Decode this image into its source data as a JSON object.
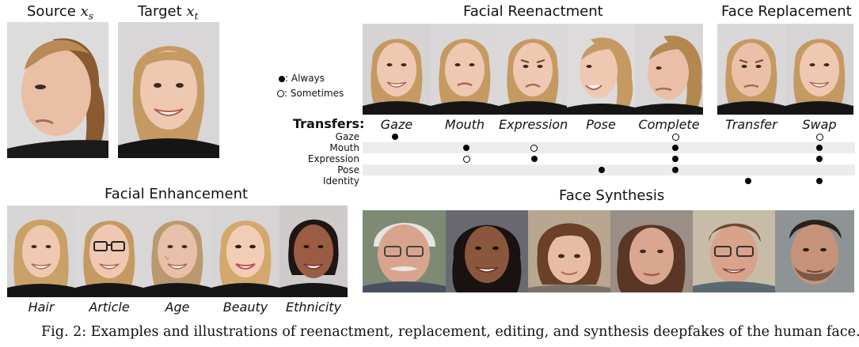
{
  "panels": {
    "source_label": "Source",
    "source_sub": "x",
    "source_subscript": "s",
    "target_label": "Target",
    "target_sub": "x",
    "target_subscript": "t",
    "reenactment_title": "Facial Reenactment",
    "replacement_title": "Face Replacement",
    "enhancement_title": "Facial Enhancement",
    "synthesis_title": "Face Synthesis"
  },
  "legend": {
    "always": ": Always",
    "sometimes": ": Sometimes"
  },
  "transfers": {
    "title": "Transfers:",
    "columns": [
      "Gaze",
      "Mouth",
      "Expression",
      "Pose",
      "Complete",
      "Transfer",
      "Swap"
    ],
    "rows": [
      "Gaze",
      "Mouth",
      "Expression",
      "Pose",
      "Identity"
    ]
  },
  "enhancement_labels": [
    "Hair",
    "Article",
    "Age",
    "Beauty",
    "Ethnicity"
  ],
  "caption": "Fig. 2: Examples and illustrations of reenactment, replacement, editing, and synthesis deepfakes of the human face."
}
